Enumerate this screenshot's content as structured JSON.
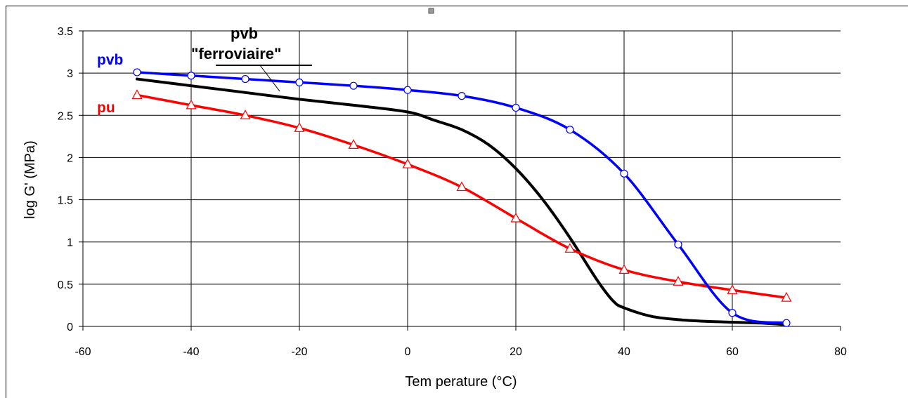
{
  "chart_data": {
    "type": "line",
    "xlabel": "Tem perature (°C)",
    "ylabel": "log G' (MPa)",
    "xlim": [
      -60,
      80
    ],
    "ylim": [
      0,
      3.5
    ],
    "xticks": [
      -60,
      -40,
      -20,
      0,
      20,
      40,
      60,
      80
    ],
    "yticks": [
      0,
      0.5,
      1,
      1.5,
      2,
      2.5,
      3,
      3.5
    ],
    "xtick_labels": [
      "-60",
      "-40",
      "-20",
      "0",
      "20",
      "40",
      "60",
      "80"
    ],
    "ytick_labels": [
      "0",
      "0.5",
      "1",
      "1.5",
      "2",
      "2.5",
      "3",
      "3.5"
    ],
    "grid": true,
    "series": [
      {
        "name": "pvb",
        "color": "#0000ff",
        "marker": "circle",
        "x": [
          -50,
          -40,
          -30,
          -20,
          -10,
          0,
          10,
          20,
          30,
          40,
          50,
          60,
          70
        ],
        "values": [
          3.01,
          2.97,
          2.93,
          2.89,
          2.85,
          2.8,
          2.73,
          2.59,
          2.33,
          1.81,
          0.97,
          0.16,
          0.04
        ]
      },
      {
        "name": "pu",
        "color": "#ff0000",
        "marker": "triangle",
        "x": [
          -50,
          -40,
          -30,
          -20,
          -10,
          0,
          10,
          20,
          30,
          40,
          50,
          60,
          70
        ],
        "values": [
          2.74,
          2.62,
          2.5,
          2.35,
          2.15,
          1.92,
          1.65,
          1.28,
          0.92,
          0.67,
          0.53,
          0.43,
          0.34
        ]
      },
      {
        "name": "pvb \"ferroviaire\"",
        "color": "#000000",
        "marker": "none",
        "x": [
          -50,
          -40,
          -30,
          -20,
          -10,
          0,
          5,
          10,
          15,
          20,
          25,
          30,
          35,
          38,
          40,
          45,
          50,
          55,
          60,
          65,
          70
        ],
        "values": [
          2.93,
          2.85,
          2.77,
          2.69,
          2.62,
          2.54,
          2.44,
          2.33,
          2.15,
          1.87,
          1.5,
          1.05,
          0.55,
          0.3,
          0.22,
          0.12,
          0.08,
          0.06,
          0.05,
          0.04,
          0.02
        ]
      }
    ],
    "labels": {
      "pvb": "pvb",
      "pu": "pu",
      "pvb_ferro_line1": "pvb",
      "pvb_ferro_line2": "\"ferroviaire\""
    }
  }
}
